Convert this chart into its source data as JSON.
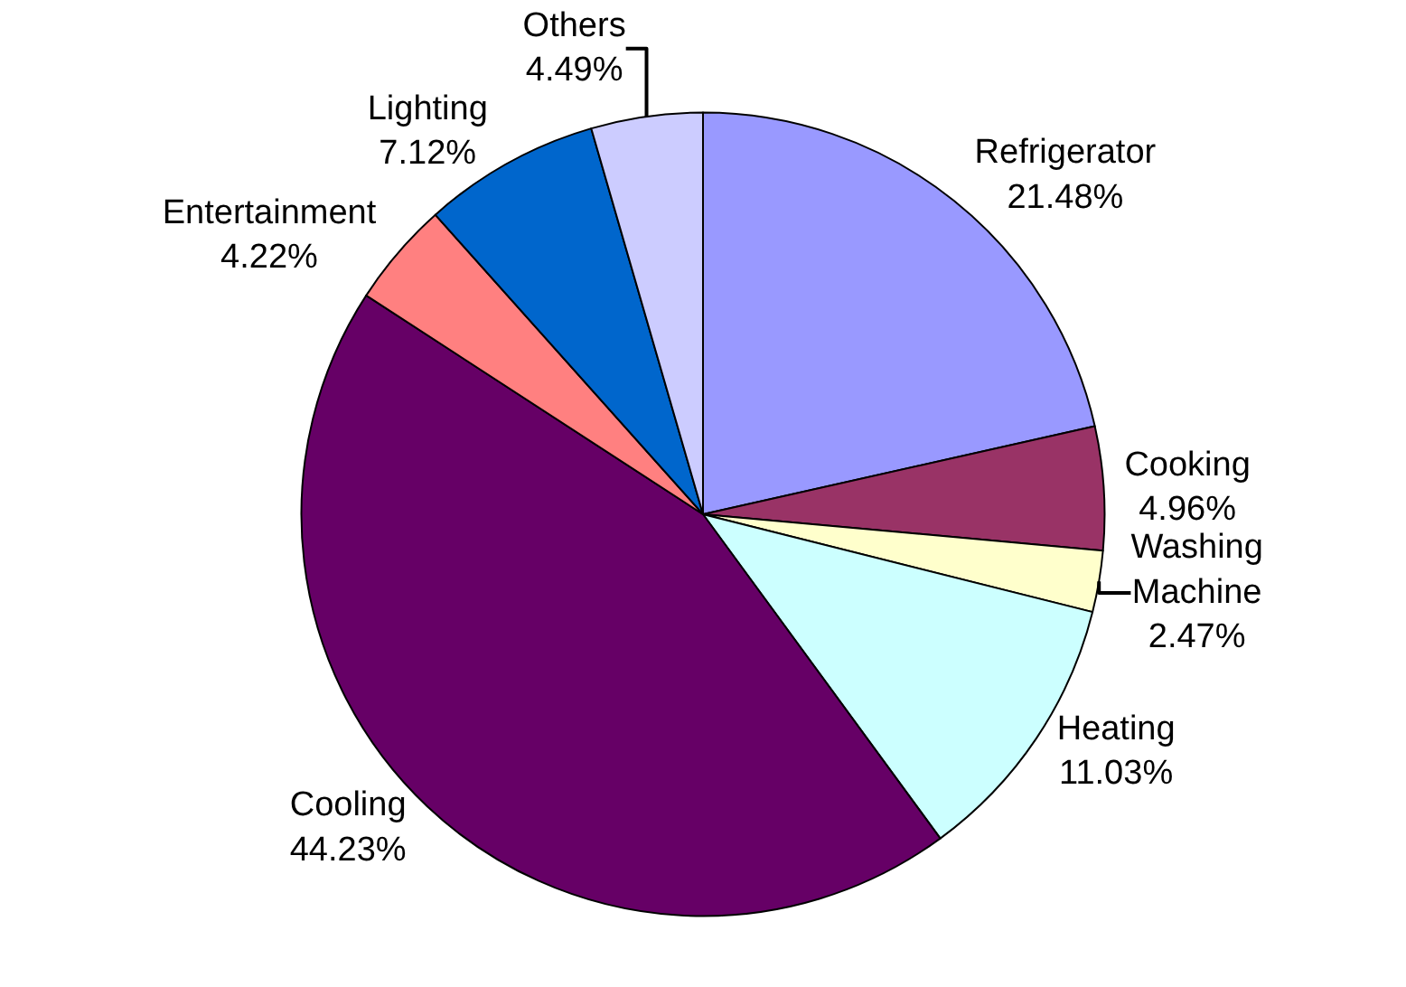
{
  "chart_data": {
    "type": "pie",
    "categories": [
      "Refrigerator",
      "Cooking",
      "Washing Machine",
      "Heating",
      "Cooling",
      "Entertainment",
      "Lighting",
      "Others"
    ],
    "values": [
      21.48,
      4.96,
      2.47,
      11.03,
      44.23,
      4.22,
      7.12,
      4.49
    ],
    "value_labels": [
      "21.48%",
      "4.96%",
      "2.47%",
      "11.03%",
      "44.23%",
      "4.22%",
      "7.12%",
      "4.49%"
    ],
    "colors": [
      "#9999ff",
      "#993366",
      "#ffffcc",
      "#ccffff",
      "#660066",
      "#ff8080",
      "#0066cc",
      "#ccccff"
    ],
    "legend": false
  }
}
